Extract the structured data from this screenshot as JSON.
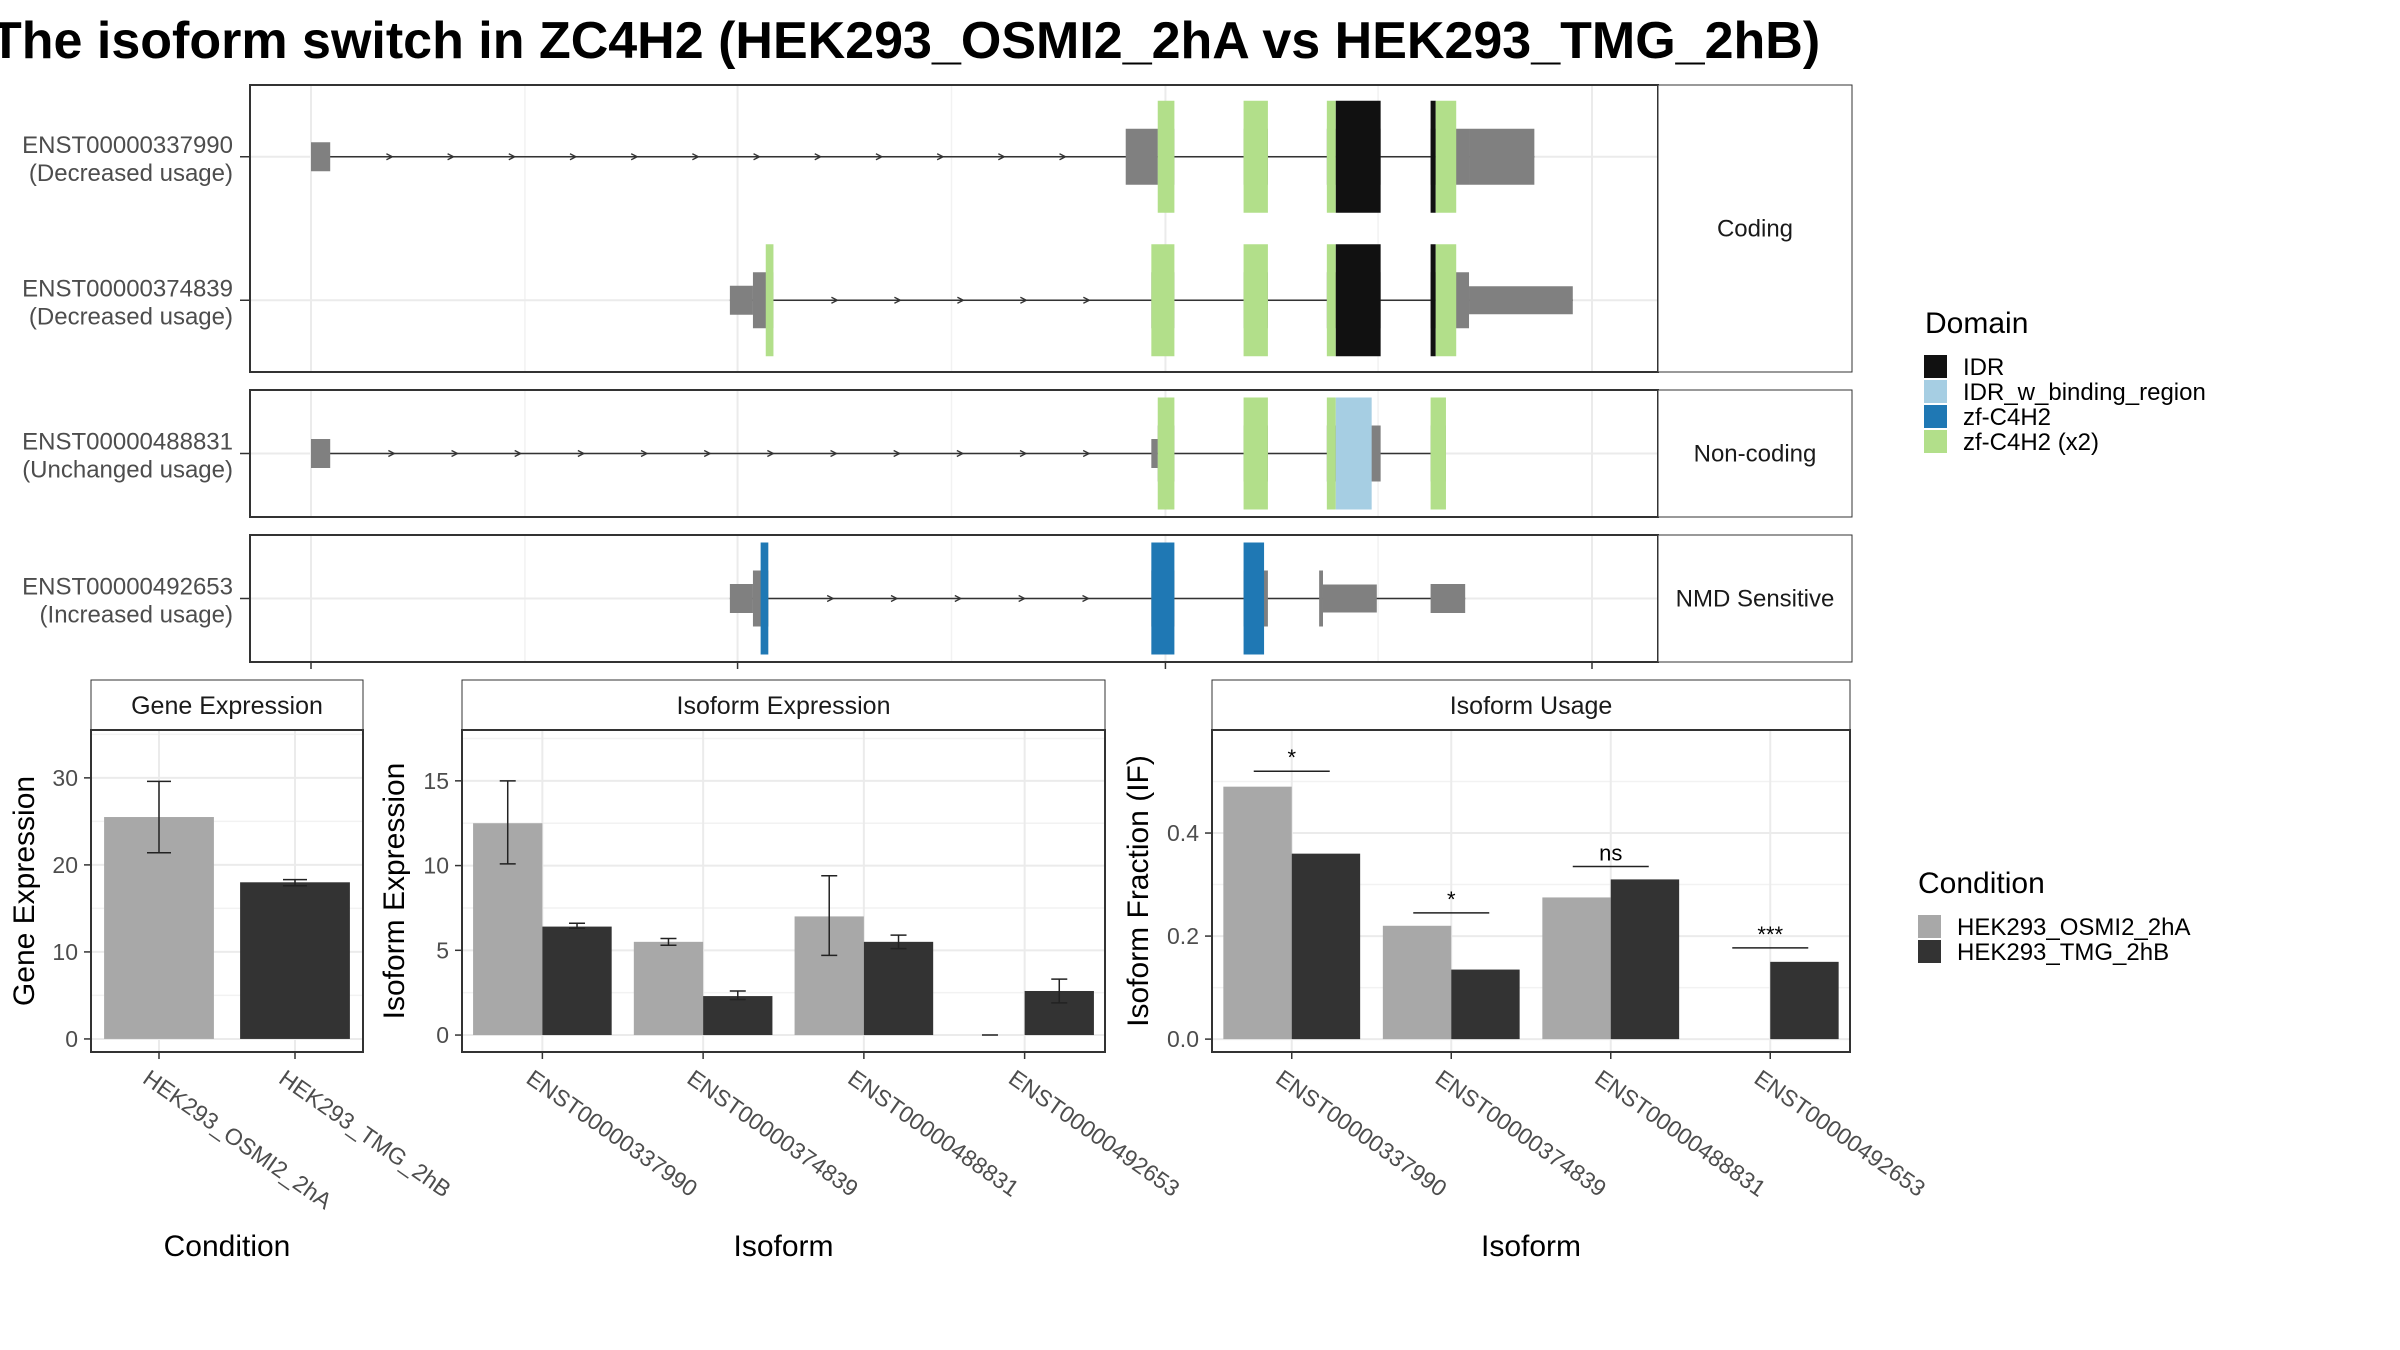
{
  "title": "The isoform switch in ZC4H2 (HEK293_OSMI2_2hA vs HEK293_TMG_2hB)",
  "colors": {
    "IDR": "#111111",
    "IDR_w_binding_region": "#a6cee3",
    "zf-C4H2": "#1f78b4",
    "zf-C4H2 (x2)": "#b2df8a",
    "exon": "#808080",
    "cond1": "#a8a8a8",
    "cond2": "#333333"
  },
  "structure": {
    "x_range": [
      0,
      1000
    ],
    "panels": [
      {
        "label": "Coding",
        "tracks": [
          {
            "id": "ENST00000337990",
            "usage": "(Decreased usage)",
            "exons": [
              [
                0,
                15,
                "s"
              ],
              [
                636,
                661,
                "b"
              ],
              [
                661,
                674,
                "b"
              ],
              [
                728,
                747,
                "b"
              ],
              [
                793,
                800,
                "b"
              ],
              [
                800,
                835,
                "b"
              ],
              [
                874,
                878,
                "b"
              ],
              [
                878,
                904,
                "b"
              ],
              [
                904,
                955,
                "b"
              ]
            ],
            "domains": [
              [
                661,
                674,
                "zf-C4H2 (x2)"
              ],
              [
                728,
                747,
                "zf-C4H2 (x2)"
              ],
              [
                793,
                800,
                "zf-C4H2 (x2)"
              ],
              [
                800,
                835,
                "IDR"
              ],
              [
                874,
                878,
                "IDR"
              ],
              [
                878,
                894,
                "zf-C4H2 (x2)"
              ]
            ],
            "arrow_span": [
              15,
              636
            ]
          },
          {
            "id": "ENST00000374839",
            "usage": "(Decreased usage)",
            "exons": [
              [
                327,
                345,
                "s"
              ],
              [
                345,
                361,
                "b"
              ],
              [
                656,
                674,
                "b"
              ],
              [
                728,
                747,
                "b"
              ],
              [
                793,
                835,
                "b"
              ],
              [
                874,
                878,
                "b"
              ],
              [
                878,
                904,
                "b"
              ],
              [
                904,
                985,
                "m"
              ]
            ],
            "domains": [
              [
                355,
                361,
                "zf-C4H2 (x2)"
              ],
              [
                656,
                674,
                "zf-C4H2 (x2)"
              ],
              [
                728,
                747,
                "zf-C4H2 (x2)"
              ],
              [
                793,
                800,
                "zf-C4H2 (x2)"
              ],
              [
                800,
                835,
                "IDR"
              ],
              [
                874,
                878,
                "IDR"
              ],
              [
                878,
                894,
                "zf-C4H2 (x2)"
              ]
            ],
            "arrow_span": [
              361,
              656
            ]
          }
        ]
      },
      {
        "label": "Non-coding",
        "tracks": [
          {
            "id": "ENST00000488831",
            "usage": "(Unchanged usage)",
            "exons": [
              [
                0,
                15,
                "s"
              ],
              [
                656,
                661,
                "s"
              ],
              [
                661,
                674,
                "b"
              ],
              [
                728,
                747,
                "b"
              ],
              [
                793,
                835,
                "b"
              ],
              [
                874,
                886,
                "b"
              ]
            ],
            "domains": [
              [
                661,
                674,
                "zf-C4H2 (x2)"
              ],
              [
                728,
                747,
                "zf-C4H2 (x2)"
              ],
              [
                793,
                800,
                "zf-C4H2 (x2)"
              ],
              [
                800,
                828,
                "IDR_w_binding_region"
              ],
              [
                874,
                886,
                "zf-C4H2 (x2)"
              ]
            ],
            "arrow_span": [
              15,
              656
            ]
          }
        ]
      },
      {
        "label": "NMD Sensitive",
        "tracks": [
          {
            "id": "ENST00000492653",
            "usage": "(Increased usage)",
            "exons": [
              [
                327,
                345,
                "s"
              ],
              [
                345,
                357,
                "b"
              ],
              [
                656,
                674,
                "b"
              ],
              [
                728,
                747,
                "b"
              ],
              [
                787,
                790,
                "b"
              ],
              [
                790,
                832,
                "m"
              ],
              [
                874,
                901,
                "s"
              ]
            ],
            "domains": [
              [
                351,
                357,
                "zf-C4H2"
              ],
              [
                656,
                674,
                "zf-C4H2"
              ],
              [
                728,
                744,
                "zf-C4H2"
              ]
            ],
            "arrow_span": [
              357,
              656
            ]
          }
        ]
      }
    ]
  },
  "legend_domain": {
    "title": "Domain",
    "items": [
      "IDR",
      "IDR_w_binding_region",
      "zf-C4H2",
      "zf-C4H2 (x2)"
    ]
  },
  "legend_condition": {
    "title": "Condition",
    "items": [
      "HEK293_OSMI2_2hA",
      "HEK293_TMG_2hB"
    ]
  },
  "chart_data": [
    {
      "type": "bar",
      "title": "Gene Expression",
      "xlabel": "Condition",
      "ylabel": "Gene Expression",
      "categories": [
        "HEK293_OSMI2_2hA",
        "HEK293_TMG_2hB"
      ],
      "values": [
        25.5,
        18.0
      ],
      "error_low": [
        21.4,
        17.6
      ],
      "error_high": [
        29.6,
        18.3
      ],
      "yticks": [
        0,
        10,
        20,
        30
      ],
      "ylim": [
        -1.5,
        35.5
      ]
    },
    {
      "type": "bar",
      "title": "Isoform Expression",
      "xlabel": "Isoform",
      "ylabel": "Isoform Expression",
      "categories": [
        "ENST00000337990",
        "ENST00000374839",
        "ENST00000488831",
        "ENST00000492653"
      ],
      "series": [
        {
          "name": "HEK293_OSMI2_2hA",
          "values": [
            12.5,
            5.5,
            7.0,
            0.0
          ],
          "error_low": [
            10.1,
            5.3,
            4.7,
            0.0
          ],
          "error_high": [
            15.0,
            5.7,
            9.4,
            0.0
          ]
        },
        {
          "name": "HEK293_TMG_2hB",
          "values": [
            6.4,
            2.3,
            5.5,
            2.6
          ],
          "error_low": [
            6.3,
            2.1,
            5.1,
            1.9
          ],
          "error_high": [
            6.6,
            2.6,
            5.9,
            3.3
          ]
        }
      ],
      "yticks": [
        0,
        5,
        10,
        15
      ],
      "ylim": [
        -1,
        18
      ]
    },
    {
      "type": "bar",
      "title": "Isoform Usage",
      "xlabel": "Isoform",
      "ylabel": "Isoform Fraction (IF)",
      "categories": [
        "ENST00000337990",
        "ENST00000374839",
        "ENST00000488831",
        "ENST00000492653"
      ],
      "series": [
        {
          "name": "HEK293_OSMI2_2hA",
          "values": [
            0.49,
            0.22,
            0.275,
            0.0
          ]
        },
        {
          "name": "HEK293_TMG_2hB",
          "values": [
            0.36,
            0.135,
            0.31,
            0.15
          ]
        }
      ],
      "significance": [
        "*",
        "*",
        "ns",
        "***"
      ],
      "sig_y": [
        0.52,
        0.245,
        0.335,
        0.177
      ],
      "yticks": [
        0.0,
        0.2,
        0.4
      ],
      "ytick_labels": [
        "0.0",
        "0.2",
        "0.4"
      ],
      "ylim": [
        -0.025,
        0.6
      ]
    }
  ]
}
